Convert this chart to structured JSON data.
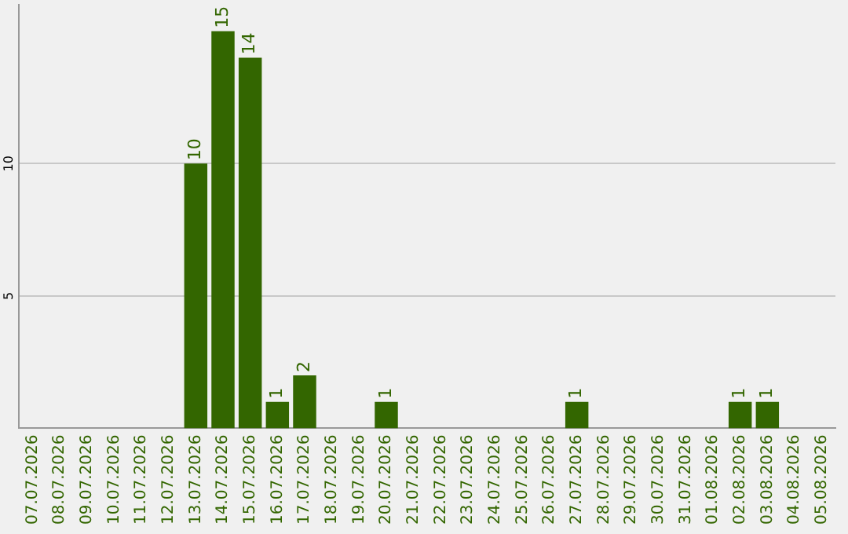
{
  "chart_data": {
    "type": "bar",
    "categories": [
      "07.07.2026",
      "08.07.2026",
      "09.07.2026",
      "10.07.2026",
      "11.07.2026",
      "12.07.2026",
      "13.07.2026",
      "14.07.2026",
      "15.07.2026",
      "16.07.2026",
      "17.07.2026",
      "18.07.2026",
      "19.07.2026",
      "20.07.2026",
      "21.07.2026",
      "22.07.2026",
      "23.07.2026",
      "24.07.2026",
      "25.07.2026",
      "26.07.2026",
      "27.07.2026",
      "28.07.2026",
      "29.07.2026",
      "30.07.2026",
      "31.07.2026",
      "01.08.2026",
      "02.08.2026",
      "03.08.2026",
      "04.08.2026",
      "05.08.2026"
    ],
    "values": [
      0,
      0,
      0,
      0,
      0,
      0,
      10,
      15,
      14,
      1,
      2,
      0,
      0,
      1,
      0,
      0,
      0,
      0,
      0,
      0,
      1,
      0,
      0,
      0,
      0,
      0,
      1,
      1,
      0,
      0
    ],
    "value_labels": [
      null,
      null,
      null,
      null,
      null,
      null,
      "10",
      "15",
      "14",
      "1",
      "2",
      null,
      null,
      "1",
      null,
      null,
      null,
      null,
      null,
      null,
      "1",
      null,
      null,
      null,
      null,
      null,
      "1",
      "1",
      null,
      null
    ],
    "color": "#336600",
    "ylim": [
      0,
      16
    ],
    "yticks": [
      5,
      10
    ],
    "grid": "y",
    "legend": false
  }
}
